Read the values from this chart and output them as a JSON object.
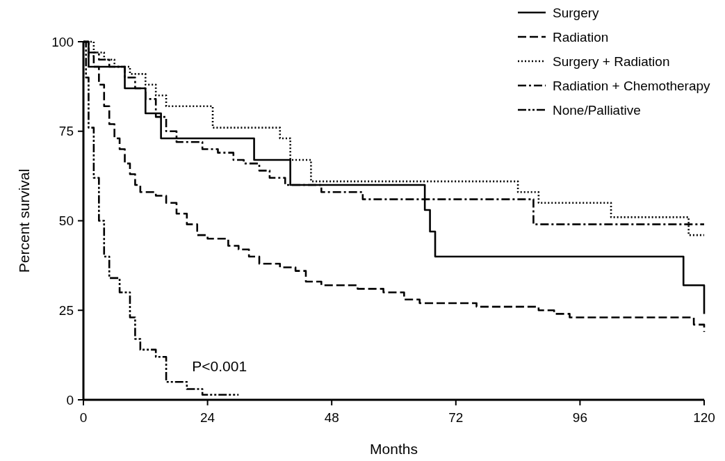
{
  "chart_data": {
    "type": "step",
    "xlabel": "Months",
    "ylabel": "Percent survival",
    "xlim": [
      0,
      120
    ],
    "ylim": [
      0,
      100
    ],
    "xticks": [
      0,
      24,
      48,
      72,
      96,
      120
    ],
    "yticks": [
      0,
      25,
      50,
      75,
      100
    ],
    "grid": false,
    "legend": "top right",
    "annotations": [
      "P<0.001"
    ],
    "series": [
      {
        "name": "Surgery",
        "color": "#000000",
        "line_style": "solid",
        "x": [
          0,
          1,
          8,
          12,
          15,
          33,
          40,
          66,
          67,
          68,
          116,
          120
        ],
        "values": [
          100,
          93,
          87,
          80,
          73,
          67,
          60,
          53,
          47,
          40,
          32,
          24
        ]
      },
      {
        "name": "Radiation",
        "color": "#000000",
        "line_style": "dashed",
        "x": [
          0,
          1,
          2,
          3,
          4,
          5,
          6,
          7,
          8,
          9,
          10,
          11,
          14,
          16,
          18,
          20,
          22,
          24,
          28,
          30,
          32,
          34,
          38,
          41,
          43,
          46,
          53,
          58,
          62,
          65,
          76,
          88,
          91,
          94,
          118,
          120
        ],
        "values": [
          100,
          96,
          93,
          88,
          82,
          77,
          73,
          70,
          66,
          63,
          60,
          58,
          57,
          55,
          52,
          49,
          46,
          45,
          43,
          42,
          40,
          38,
          37,
          36,
          33,
          32,
          31,
          30,
          28,
          27,
          26,
          25,
          24,
          23,
          21,
          19
        ]
      },
      {
        "name": "Surgery + Radiation",
        "color": "#000000",
        "line_style": "dotted",
        "x": [
          0,
          2,
          4,
          6,
          9,
          12,
          14,
          16,
          25,
          38,
          40,
          44,
          84,
          88,
          102,
          117,
          120
        ],
        "values": [
          100,
          97,
          95,
          93,
          91,
          88,
          85,
          82,
          76,
          73,
          67,
          61,
          58,
          55,
          51,
          46,
          46
        ]
      },
      {
        "name": "Radiation + Chemotherapy",
        "color": "#000000",
        "line_style": "dashdot",
        "x": [
          0,
          1,
          3,
          5,
          8,
          10,
          12,
          14,
          16,
          18,
          23,
          26,
          29,
          31,
          34,
          36,
          39,
          46,
          54,
          87,
          120
        ],
        "values": [
          100,
          97,
          95,
          93,
          90,
          87,
          84,
          79,
          75,
          72,
          70,
          69,
          67,
          66,
          64,
          62,
          60,
          58,
          56,
          49,
          49
        ]
      },
      {
        "name": "None/Palliative",
        "color": "#000000",
        "line_style": "dashdotdot",
        "x": [
          0,
          0.5,
          1,
          2,
          3,
          4,
          5,
          7,
          9,
          10,
          11,
          14,
          16,
          20,
          23,
          30
        ],
        "values": [
          100,
          90,
          76,
          62,
          50,
          40,
          34,
          30,
          23,
          17,
          14,
          12,
          5,
          3,
          1.4,
          1.4
        ]
      }
    ]
  }
}
